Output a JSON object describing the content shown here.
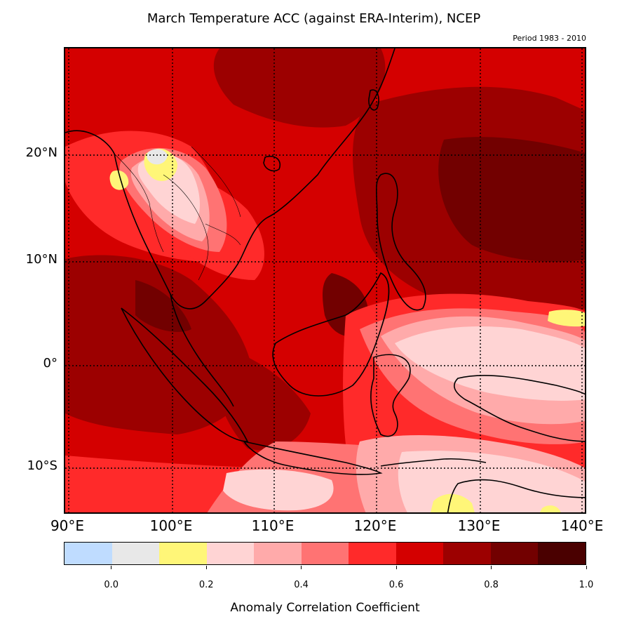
{
  "title": "March Temperature ACC (against ERA-Interim), NCEP",
  "subtitle": "Period 1983 - 2010",
  "map": {
    "lat_labels": [
      "20°N",
      "10°N",
      "0°",
      "10°S"
    ],
    "lon_labels": [
      "90°E",
      "100°E",
      "110°E",
      "120°E",
      "130°E",
      "140°E"
    ],
    "extent": {
      "lon_min": 90,
      "lon_max": 140,
      "lat_min": -14.5,
      "lat_max": 30
    },
    "gridlines": true,
    "gridline_style": "dotted"
  },
  "colorbar": {
    "label": "Anomaly Correlation Coefficient",
    "ticks": [
      "0.0",
      "0.2",
      "0.4",
      "0.6",
      "0.8",
      "1.0"
    ],
    "bounds": [
      -0.1,
      0.0,
      0.1,
      0.2,
      0.3,
      0.4,
      0.5,
      0.6,
      0.7,
      0.8,
      0.9,
      1.0
    ],
    "colors": [
      "#bfdcff",
      "#e8e8e8",
      "#fff678",
      "#ffd4d4",
      "#ffaaaa",
      "#ff7373",
      "#ff2a2a",
      "#d40000",
      "#9c0000",
      "#720000",
      "#4a0000"
    ]
  }
}
